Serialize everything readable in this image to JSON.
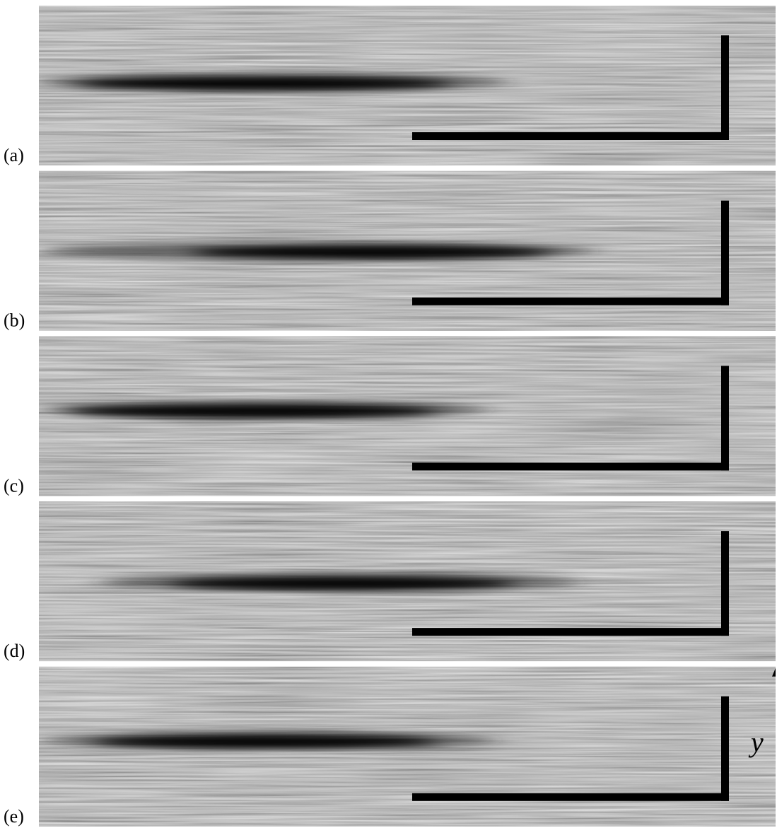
{
  "panels": [
    {
      "label": "(a)"
    },
    {
      "label": "(b)"
    },
    {
      "label": "(c)"
    },
    {
      "label": "(d)"
    },
    {
      "label": "(e)"
    }
  ],
  "axis_label": "y"
}
